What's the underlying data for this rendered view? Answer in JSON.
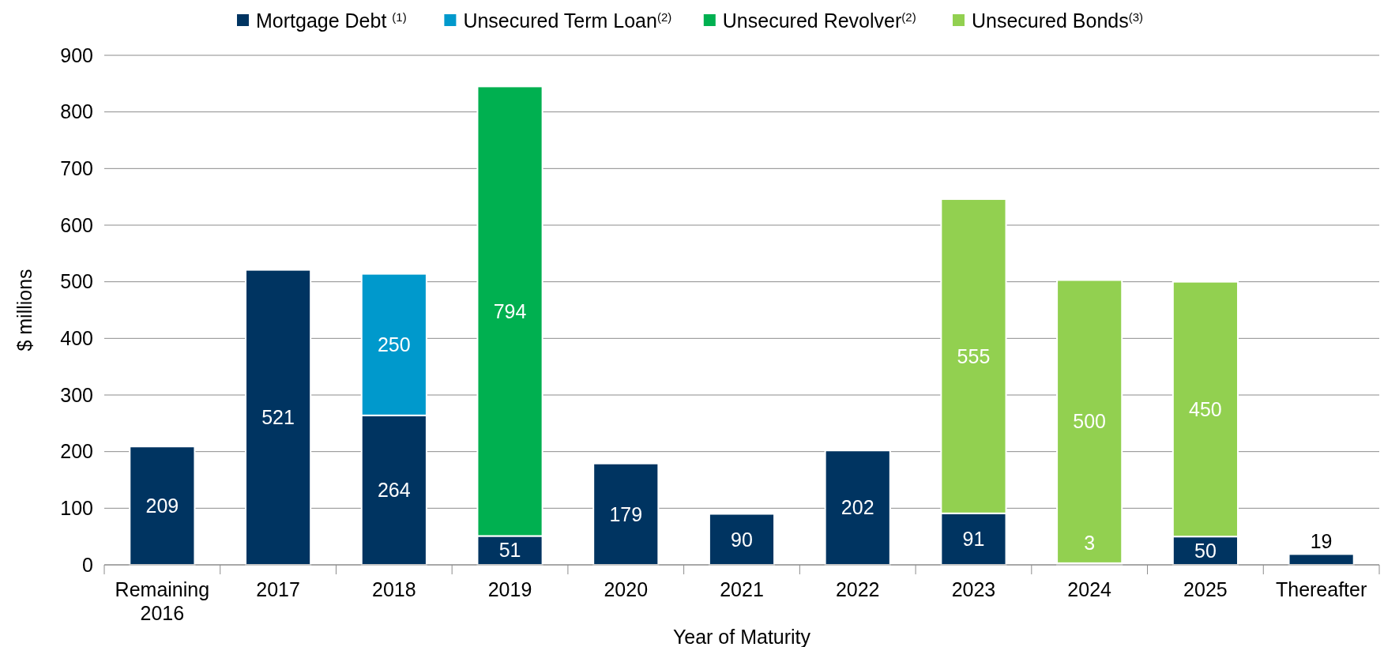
{
  "chart_data": {
    "type": "bar",
    "stacked": true,
    "xlabel": "Year of Maturity",
    "ylabel": "$ millions",
    "categories": [
      "Remaining 2016",
      "2017",
      "2018",
      "2019",
      "2020",
      "2021",
      "2022",
      "2023",
      "2024",
      "2025",
      "Thereafter"
    ],
    "series": [
      {
        "name": "Mortgage Debt $^{(1)}$",
        "color": "#003461",
        "values": [
          209,
          521,
          264,
          51,
          179,
          90,
          202,
          91,
          3,
          50,
          19
        ]
      },
      {
        "name": "Unsecured Term Loan$^{(2)}$",
        "color": "#0099cc",
        "values": [
          null,
          null,
          250,
          null,
          null,
          null,
          null,
          null,
          null,
          null,
          null
        ]
      },
      {
        "name": "Unsecured Revolver$^{(2)}$",
        "color": "#00b050",
        "values": [
          null,
          null,
          null,
          794,
          null,
          null,
          null,
          null,
          null,
          null,
          null
        ]
      },
      {
        "name": "Unsecured Bonds$^{(3)}$",
        "color": "#92d050",
        "values": [
          null,
          null,
          null,
          null,
          null,
          null,
          null,
          555,
          500,
          450,
          null
        ]
      }
    ],
    "ylim": [
      0,
      900
    ],
    "yticks": [
      0,
      100,
      200,
      300,
      400,
      500,
      600,
      700,
      800,
      900
    ],
    "grid": "y",
    "legend": "top",
    "data_labels": true
  }
}
